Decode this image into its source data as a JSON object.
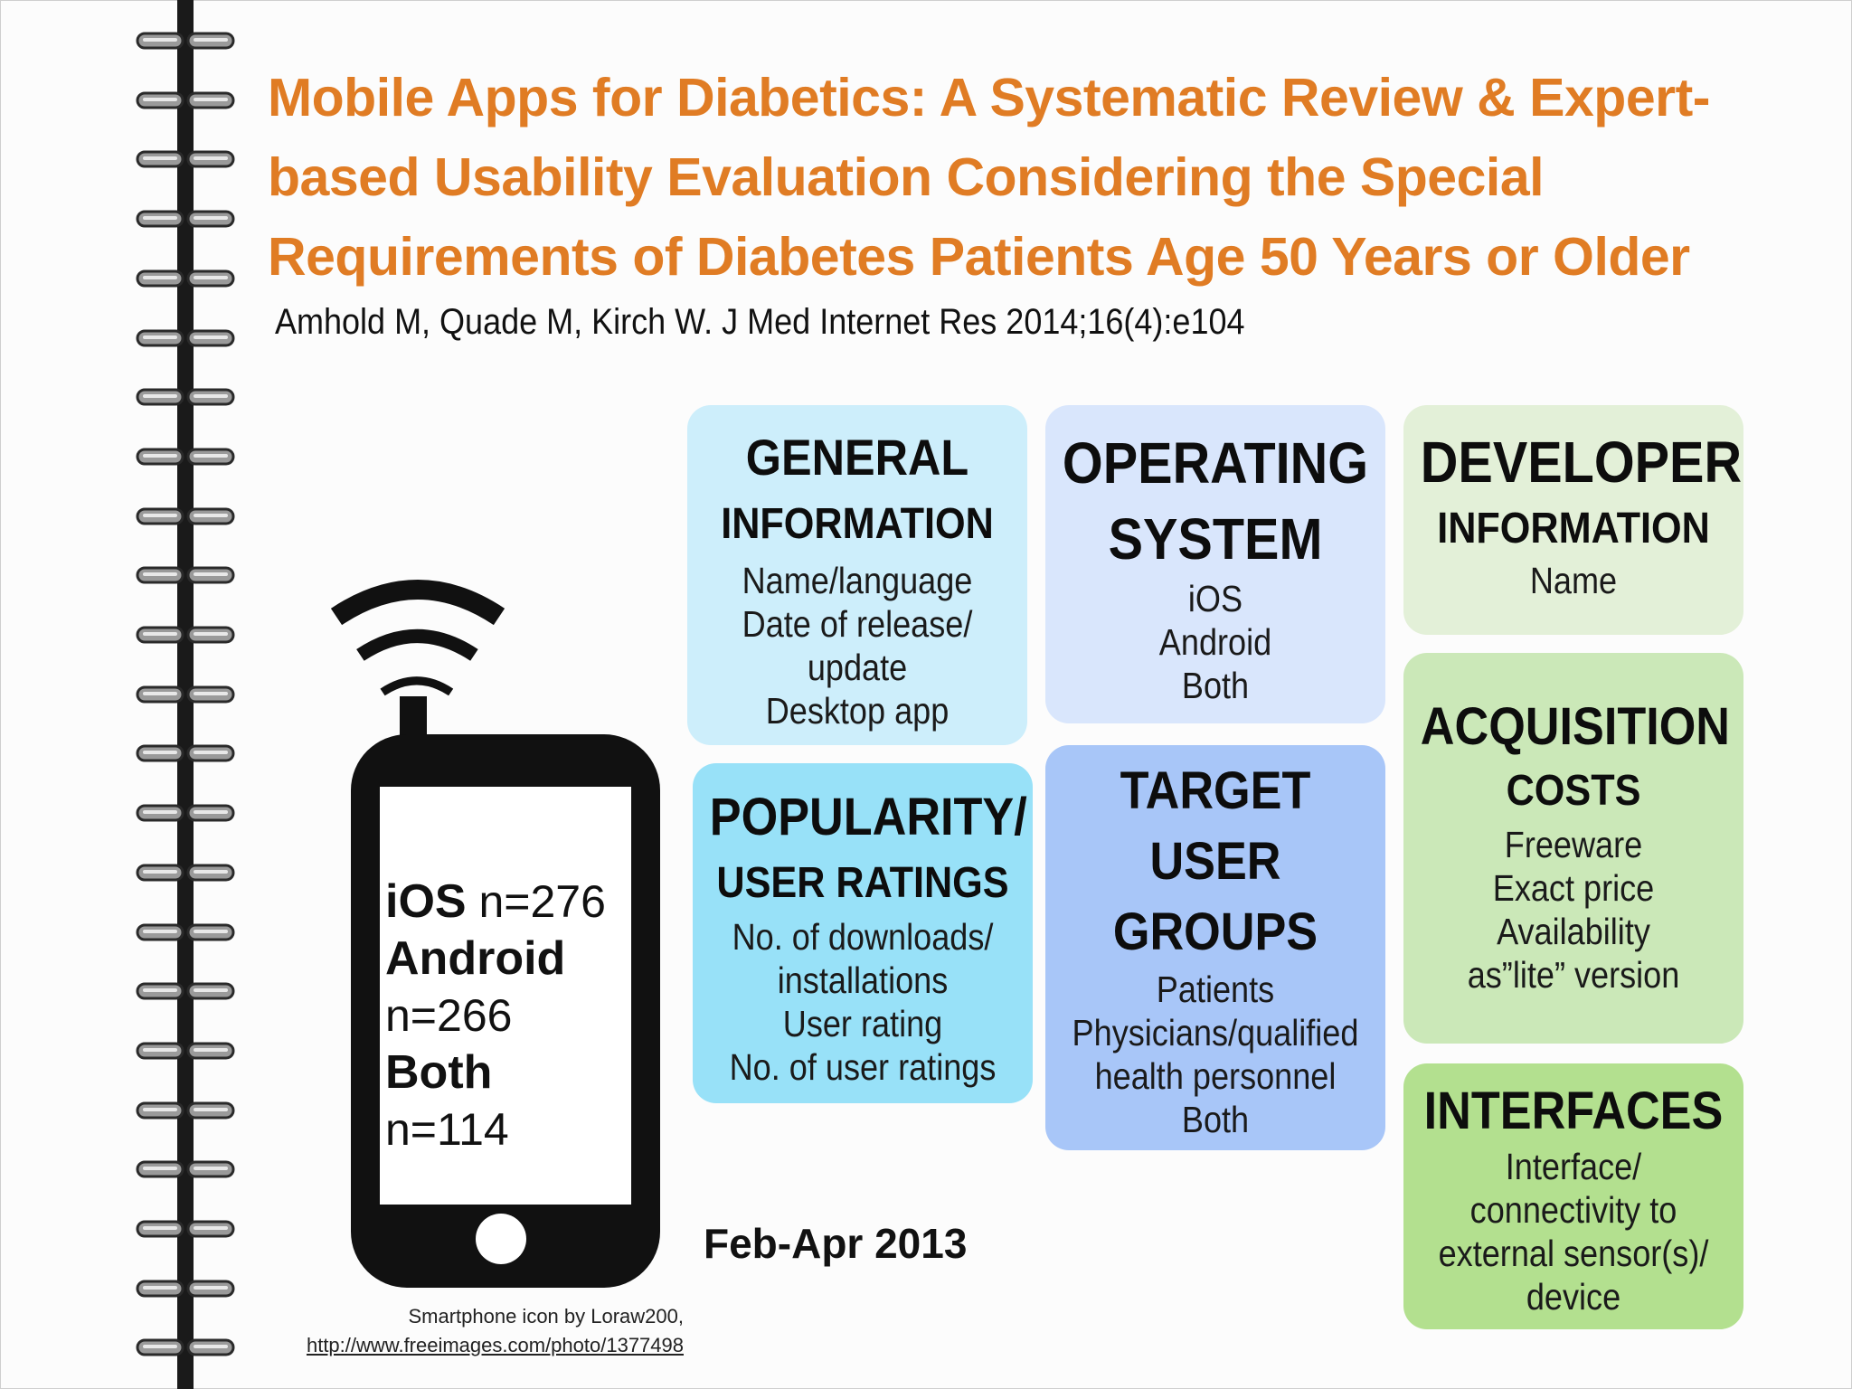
{
  "header": {
    "title_line1": "Mobile Apps for Diabetics: A Systematic Review & Expert-",
    "title_line2": "based Usability Evaluation Considering the Special",
    "title_line3": "Requirements of Diabetes Patients Age 50 Years or Older",
    "citation": "Amhold M, Quade M, Kirch W. J Med Internet Res 2014;16(4):e104"
  },
  "phone": {
    "icon": "smartphone-wifi-icon",
    "ios_label": "iOS",
    "ios_count": "n=276",
    "android_label": "Android",
    "android_count": "n=266",
    "both_label": "Both",
    "both_count": "n=114"
  },
  "date_range": "Feb-Apr 2013",
  "credit": {
    "line1": "Smartphone icon by Loraw200,",
    "link": "http://www.freeimages.com/photo/1377498"
  },
  "cards": {
    "general": {
      "h1": "GENERAL",
      "h2": "INFORMATION",
      "items": [
        "Name/language",
        "Date of release/",
        "update",
        "Desktop app"
      ],
      "color": "#cdeefb"
    },
    "os": {
      "h1": "OPERATING",
      "h2": "SYSTEM",
      "items": [
        "iOS",
        "Android",
        "Both"
      ],
      "color": "#d9e6fc"
    },
    "developer": {
      "h1": "DEVELOPER",
      "h2": "INFORMATION",
      "items": [
        "Name"
      ],
      "color": "#e3f0d8"
    },
    "popularity": {
      "h1": "POPULARITY/",
      "h2": "USER RATINGS",
      "items": [
        "No. of downloads/",
        "installations",
        "User rating",
        "No. of user ratings"
      ],
      "color": "#98e1f8"
    },
    "target": {
      "h1": "TARGET",
      "h2": "USER",
      "h3": "GROUPS",
      "items": [
        "Patients",
        "Physicians/qualified",
        "health personnel",
        "Both"
      ],
      "color": "#a8c6f8"
    },
    "acquisition": {
      "h1": "ACQUISITION",
      "h2": "COSTS",
      "items": [
        "Freeware",
        "Exact price",
        "Availability",
        "as”lite” version"
      ],
      "color": "#cbe8b8"
    },
    "interfaces": {
      "h1": "INTERFACES",
      "items": [
        "Interface/",
        "connectivity to",
        "external sensor(s)/",
        "device"
      ],
      "color": "#b3e08f"
    }
  }
}
